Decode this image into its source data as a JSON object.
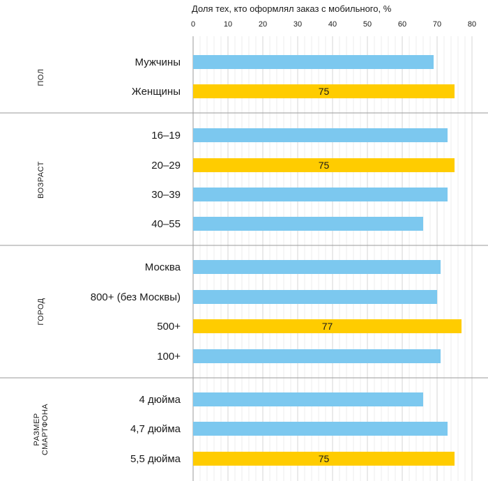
{
  "chart_data": {
    "type": "bar",
    "orientation": "horizontal",
    "title": "Доля тех, кто оформлял заказ с мобильного, %",
    "xlim": [
      0,
      80
    ],
    "ticks": [
      0,
      10,
      20,
      30,
      40,
      50,
      60,
      70,
      80
    ],
    "grid": true,
    "colors": {
      "default": "#7CC8EF",
      "highlight": "#FFCC00"
    },
    "groups": [
      {
        "label": [
          "ПОЛ"
        ],
        "categories": [
          {
            "label": "Мужчины",
            "value": 69,
            "highlight": false
          },
          {
            "label": "Женщины",
            "value": 75,
            "highlight": true,
            "data_label": "75"
          }
        ]
      },
      {
        "label": [
          "ВОЗРАСТ"
        ],
        "categories": [
          {
            "label": "16–19",
            "value": 73,
            "highlight": false
          },
          {
            "label": "20–29",
            "value": 75,
            "highlight": true,
            "data_label": "75"
          },
          {
            "label": "30–39",
            "value": 73,
            "highlight": false
          },
          {
            "label": "40–55",
            "value": 66,
            "highlight": false
          }
        ]
      },
      {
        "label": [
          "ГОРОД"
        ],
        "categories": [
          {
            "label": "Москва",
            "value": 71,
            "highlight": false
          },
          {
            "label": "800+ (без Москвы)",
            "value": 70,
            "highlight": false
          },
          {
            "label": "500+",
            "value": 77,
            "highlight": true,
            "data_label": "77"
          },
          {
            "label": "100+",
            "value": 71,
            "highlight": false
          }
        ]
      },
      {
        "label": [
          "РАЗМЕР",
          "СМАРТФОНА"
        ],
        "categories": [
          {
            "label": "4 дюйма",
            "value": 66,
            "highlight": false
          },
          {
            "label": "4,7 дюйма",
            "value": 73,
            "highlight": false
          },
          {
            "label": "5,5 дюйма",
            "value": 75,
            "highlight": true,
            "data_label": "75"
          }
        ]
      }
    ]
  }
}
